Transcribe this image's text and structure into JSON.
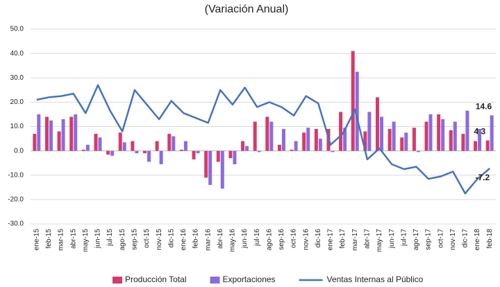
{
  "chart_data": {
    "type": "bar",
    "title": "(Variación Anual)",
    "categories": [
      "ene-15",
      "feb-15",
      "mar-15",
      "abr-15",
      "may-15",
      "jun-15",
      "jul-15",
      "ago-15",
      "sep-15",
      "oct-15",
      "nov-15",
      "dic-15",
      "ene-16",
      "feb-16",
      "mar-16",
      "abr-16",
      "may-16",
      "jun-16",
      "jul-16",
      "ago-16",
      "sep-16",
      "oct-16",
      "nov-16",
      "dic-16",
      "ene-17",
      "feb-17",
      "mar-17",
      "abr-17",
      "may-17",
      "jun-17",
      "jul-17",
      "ago-17",
      "sep-17",
      "oct-17",
      "nov-17",
      "dic-17",
      "ene-18",
      "feb-18"
    ],
    "series": [
      {
        "name": "Producción Total",
        "type": "bar",
        "color": "#d63a6b",
        "show_last_value": true,
        "values": [
          7,
          14,
          8,
          14,
          0.5,
          7,
          -1.5,
          7.5,
          4,
          -1,
          4,
          7,
          0.5,
          -3.5,
          -11,
          -4.5,
          -3,
          4,
          12,
          14,
          2.5,
          0.5,
          7.5,
          9,
          9,
          16,
          41,
          8,
          22,
          9,
          5.5,
          9.5,
          12,
          15,
          8.5,
          7,
          4,
          4.3
        ]
      },
      {
        "name": "Exportaciones",
        "type": "bar",
        "color": "#8b6be0",
        "show_last_value": true,
        "values": [
          15,
          12.5,
          13,
          15,
          2.5,
          5.5,
          -2,
          3.5,
          -1,
          -4.5,
          -5.5,
          6,
          4,
          -1,
          -14,
          -15.5,
          -5.5,
          2,
          -0.5,
          12,
          9,
          4,
          9.5,
          5,
          -0.5,
          9.5,
          32.5,
          16,
          14,
          12,
          7.5,
          -0.5,
          15,
          13,
          12,
          16.5,
          9,
          14.6
        ]
      },
      {
        "name": "Ventas Internas al Público",
        "type": "line",
        "color": "#4472c4",
        "show_last_value": true,
        "values": [
          21,
          22,
          22.5,
          23.5,
          15.5,
          27,
          16.5,
          8,
          25,
          19,
          13,
          20.5,
          15.5,
          13.5,
          11.5,
          25,
          19,
          26,
          18,
          20,
          18,
          14.5,
          22.5,
          19.5,
          2.5,
          7,
          17,
          -3.5,
          1,
          -5.5,
          -7.5,
          -6.5,
          -11.5,
          -10.5,
          -8.5,
          -17.5,
          -11.5,
          -7.2
        ]
      }
    ],
    "ylim": [
      -30,
      50
    ],
    "yticks": [
      {
        "value": -30,
        "label": "-30.0"
      },
      {
        "value": -20,
        "label": "-20.0"
      },
      {
        "value": -10,
        "label": "-10.0"
      },
      {
        "value": 0,
        "label": "0.0"
      },
      {
        "value": 10,
        "label": "10.0"
      },
      {
        "value": 20,
        "label": "20.0"
      },
      {
        "value": 30,
        "label": "30.0"
      },
      {
        "value": 40,
        "label": "40.0"
      },
      {
        "value": 50,
        "label": "50.0"
      }
    ],
    "grid": true,
    "legend": "bottom"
  }
}
